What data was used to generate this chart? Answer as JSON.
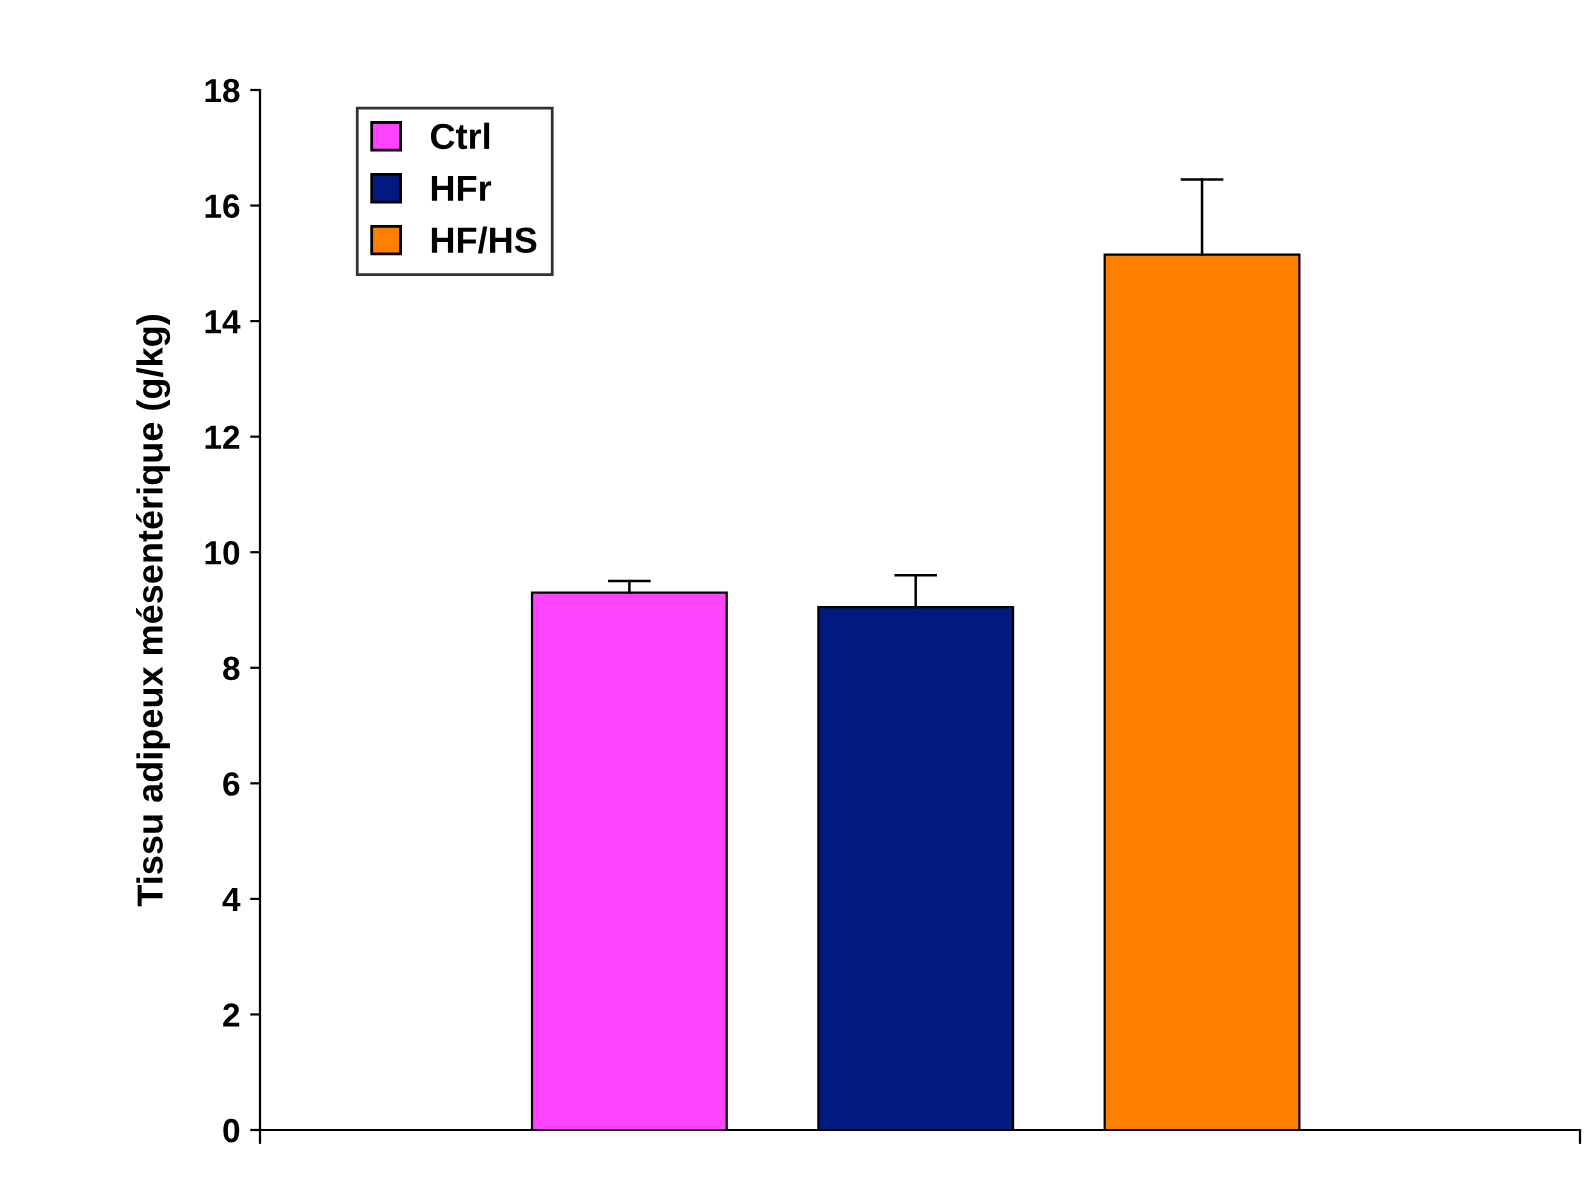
{
  "chart_data": {
    "type": "bar",
    "ylabel": "Tissu adipeux mésentérique (g/kg)",
    "categories": [
      null,
      null,
      null
    ],
    "series": [
      {
        "name": "Ctrl",
        "color": "#ff44ff",
        "values": [
          9.3,
          null,
          null
        ],
        "errors": [
          [
            9.3,
            9.5
          ],
          null,
          null
        ]
      },
      {
        "name": "HFr",
        "color": "#001a80",
        "values": [
          null,
          9.05,
          null
        ],
        "errors": [
          null,
          [
            9.05,
            9.6
          ],
          null
        ]
      },
      {
        "name": "HF/HS",
        "color": "#ff8000",
        "values": [
          null,
          null,
          15.15
        ],
        "errors": [
          null,
          null,
          [
            15.15,
            16.45
          ]
        ]
      }
    ],
    "ylim": [
      0,
      18
    ],
    "yticks": [
      0,
      2,
      4,
      6,
      8,
      10,
      12,
      14,
      16,
      18
    ],
    "grid": false,
    "legend": "top left"
  }
}
